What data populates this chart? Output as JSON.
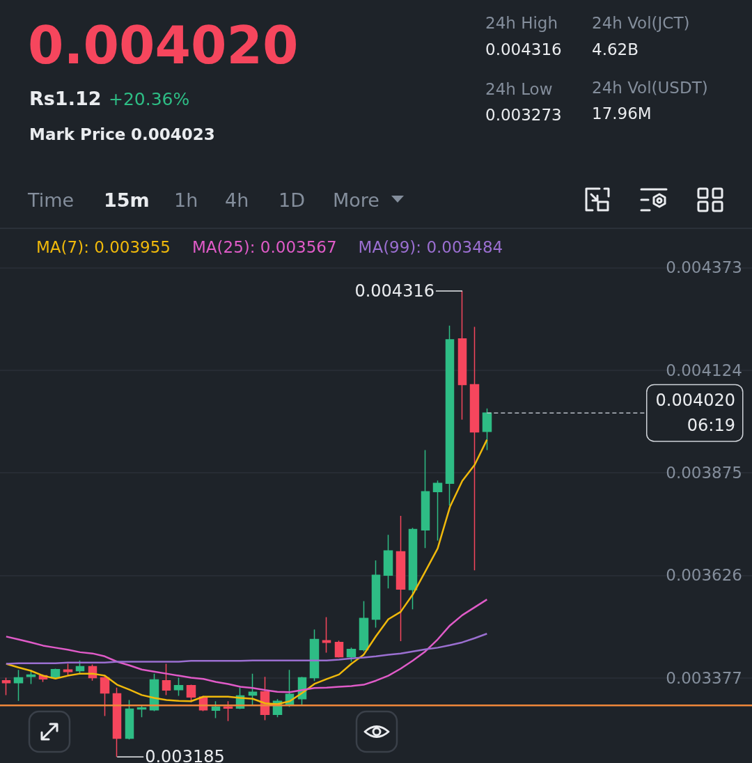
{
  "chart_data": {
    "type": "candlestick",
    "title": "0.004020",
    "categories": [
      null,
      null,
      null,
      null,
      null,
      null,
      null,
      null,
      null,
      null,
      null,
      null,
      null,
      null,
      null,
      null,
      null,
      null,
      null,
      null,
      null,
      null,
      null,
      null,
      null,
      null,
      null,
      null,
      null,
      null,
      null,
      null,
      null,
      null,
      null,
      null,
      null,
      null,
      null,
      null
    ],
    "ohlc": [
      [
        0.00337,
        0.003377,
        0.003335,
        0.003365
      ],
      [
        0.003365,
        0.003396,
        0.003321,
        0.003377
      ],
      [
        0.00338,
        0.003396,
        0.003362,
        0.003384
      ],
      [
        0.003382,
        0.003385,
        0.003367,
        0.003374
      ],
      [
        0.003377,
        0.003399,
        0.003375,
        0.003397
      ],
      [
        0.003396,
        0.003411,
        0.003382,
        0.003392
      ],
      [
        0.003394,
        0.003419,
        0.003387,
        0.003404
      ],
      [
        0.003404,
        0.003409,
        0.00337,
        0.003377
      ],
      [
        0.003377,
        0.003382,
        0.003284,
        0.00334
      ],
      [
        0.003338,
        0.003353,
        0.003185,
        0.00323
      ],
      [
        0.00323,
        0.003323,
        0.003227,
        0.003301
      ],
      [
        0.003301,
        0.00331,
        0.003281,
        0.003304
      ],
      [
        0.003299,
        0.003387,
        0.003296,
        0.003372
      ],
      [
        0.00337,
        0.003411,
        0.003335,
        0.003347
      ],
      [
        0.003348,
        0.003377,
        0.003333,
        0.003358
      ],
      [
        0.003358,
        0.00336,
        0.003318,
        0.00333
      ],
      [
        0.00333,
        0.003333,
        0.003296,
        0.003299
      ],
      [
        0.003298,
        0.00332,
        0.003279,
        0.003306
      ],
      [
        0.003306,
        0.00332,
        0.003272,
        0.003303
      ],
      [
        0.003303,
        0.003353,
        0.003301,
        0.003333
      ],
      [
        0.003335,
        0.003387,
        0.003311,
        0.003342
      ],
      [
        0.003343,
        0.003379,
        0.003274,
        0.003288
      ],
      [
        0.003288,
        0.003325,
        0.003281,
        0.00332
      ],
      [
        0.003313,
        0.003396,
        0.003306,
        0.003337
      ],
      [
        0.003326,
        0.003379,
        0.003311,
        0.003377
      ],
      [
        0.003377,
        0.003494,
        0.003369,
        0.00347
      ],
      [
        0.003467,
        0.003524,
        0.003438,
        0.003463
      ],
      [
        0.003463,
        0.003467,
        0.003426,
        0.003428
      ],
      [
        0.003428,
        0.00345,
        0.003416,
        0.003446
      ],
      [
        0.003445,
        0.003563,
        0.003441,
        0.003521
      ],
      [
        0.003519,
        0.003662,
        0.003499,
        0.003626
      ],
      [
        0.003626,
        0.003724,
        0.003594,
        0.003685
      ],
      [
        0.003683,
        0.00377,
        0.003466,
        0.003592
      ],
      [
        0.003591,
        0.003741,
        0.003543,
        0.003737
      ],
      [
        0.003736,
        0.00393,
        0.003692,
        0.003829
      ],
      [
        0.003829,
        0.003856,
        0.00371,
        0.003849
      ],
      [
        0.003849,
        0.004232,
        0.003795,
        0.004198
      ],
      [
        0.0042,
        0.004316,
        0.004004,
        0.004089
      ],
      [
        0.004089,
        0.004229,
        0.003638,
        0.003974
      ],
      [
        0.003975,
        0.004031,
        0.00393,
        0.00402
      ]
    ],
    "series": [
      {
        "type": "line",
        "name": "MA(7): 0.003955",
        "color": "#f0b90b",
        "values": [
          0.003411,
          0.003402,
          0.003394,
          0.003382,
          0.003375,
          0.003382,
          0.003387,
          0.003387,
          0.003382,
          0.00336,
          0.003348,
          0.003335,
          0.003328,
          0.003323,
          0.003321,
          0.00332,
          0.003331,
          0.003331,
          0.003331,
          0.003328,
          0.003326,
          0.003315,
          0.003313,
          0.00332,
          0.00334,
          0.003362,
          0.003374,
          0.003385,
          0.003411,
          0.003433,
          0.003478,
          0.003519,
          0.003537,
          0.00358,
          0.003635,
          0.003691,
          0.003792,
          0.003855,
          0.003894,
          0.003955
        ]
      },
      {
        "type": "line",
        "name": "MA(25): 0.003567",
        "color": "#e05bc8",
        "values": [
          0.003477,
          0.00347,
          0.003463,
          0.003455,
          0.00345,
          0.003445,
          0.003439,
          0.003436,
          0.003429,
          0.003416,
          0.003407,
          0.003397,
          0.003392,
          0.003387,
          0.003382,
          0.003377,
          0.003374,
          0.003367,
          0.003362,
          0.003355,
          0.003352,
          0.003347,
          0.003343,
          0.003342,
          0.003347,
          0.003352,
          0.003353,
          0.003355,
          0.003357,
          0.00336,
          0.00337,
          0.003382,
          0.003399,
          0.003419,
          0.003441,
          0.00347,
          0.003504,
          0.003529,
          0.003548,
          0.003567
        ]
      },
      {
        "type": "line",
        "name": "MA(99): 0.003484",
        "color": "#9b6fd1",
        "values": [
          0.003411,
          0.003412,
          0.003412,
          0.003412,
          0.003412,
          0.003414,
          0.003414,
          0.003414,
          0.003414,
          0.003416,
          0.003416,
          0.003416,
          0.003416,
          0.003416,
          0.003416,
          0.003418,
          0.003418,
          0.003418,
          0.003418,
          0.003418,
          0.003419,
          0.003419,
          0.003419,
          0.003419,
          0.003419,
          0.003419,
          0.003419,
          0.003421,
          0.003424,
          0.003426,
          0.003429,
          0.003433,
          0.003436,
          0.003441,
          0.003446,
          0.00345,
          0.003456,
          0.003463,
          0.003473,
          0.003484
        ]
      }
    ],
    "ylim": [
      0.00317,
      0.00447
    ],
    "yticks": [
      0.003377,
      0.003626,
      0.003875,
      0.004124,
      0.004373
    ],
    "tick_labels": "y",
    "grid": "y",
    "legend": "top",
    "marker": "none",
    "ref_lines": [
      {
        "axis": "y",
        "value": 0.00402,
        "label": "0.004020",
        "line_style": "dashed",
        "color": "#b7bdc6"
      },
      {
        "axis": "y",
        "value": 0.00331,
        "color": "#f0873a"
      }
    ],
    "annotations": [
      "Rs1.12",
      "+20.36%",
      "Mark Price",
      "0.004023",
      "24h High",
      "0.004316",
      "24h Vol(JCT)",
      "4.62B",
      "24h Low",
      "0.003273",
      "24h Vol(USDT)",
      "17.96M",
      "Time",
      "15m",
      "1h",
      "4h",
      "1D",
      "More",
      "06:19",
      "0.004316",
      "0.003185"
    ]
  }
}
